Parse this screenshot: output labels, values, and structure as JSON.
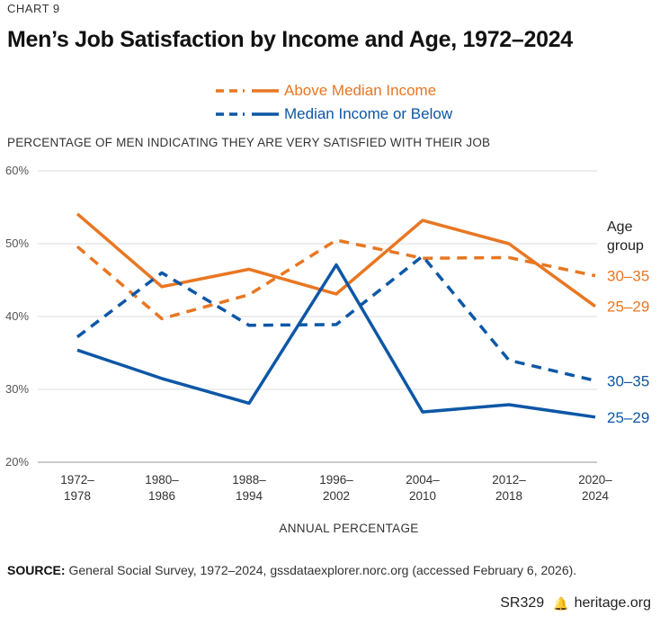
{
  "chart_label": "CHART 9",
  "title": "Men’s Job Satisfaction by Income and Age, 1972–2024",
  "subtitle": "PERCENTAGE OF MEN INDICATING THEY ARE VERY SATISFIED WITH THEIR JOB",
  "legend": [
    {
      "label": "Above Median Income",
      "color": "#e87722"
    },
    {
      "label": "Median Income or Below",
      "color": "#0d57a6"
    }
  ],
  "age_group_heading": [
    "Age",
    "group"
  ],
  "source": {
    "label": "SOURCE:",
    "text": " General Social Survey, 1972–2024, gssdataexplorer.norc.org (accessed February 6, 2026)."
  },
  "footer": {
    "report_id": "SR329",
    "site": "heritage.org"
  },
  "chart_data": {
    "type": "line",
    "categories": [
      [
        "1972–",
        "1978"
      ],
      [
        "1980–",
        "1986"
      ],
      [
        "1988–",
        "1994"
      ],
      [
        "1996–",
        "2002"
      ],
      [
        "2004–",
        "2010"
      ],
      [
        "2012–",
        "2018"
      ],
      [
        "2020–",
        "2024"
      ]
    ],
    "xlabel": "ANNUAL PERCENTAGE",
    "ylim": [
      20,
      60
    ],
    "yticks": [
      20,
      30,
      40,
      50,
      60
    ],
    "ytick_labels": [
      "20%",
      "30%",
      "40%",
      "50%",
      "60%"
    ],
    "grid": true,
    "series": [
      {
        "group": "Above Median Income",
        "age": "30–35",
        "style": "dashed",
        "color": "#e87722",
        "values": [
          49.6,
          39.7,
          43.0,
          50.5,
          48.0,
          48.1,
          45.6
        ]
      },
      {
        "group": "Above Median Income",
        "age": "25–29",
        "style": "solid",
        "color": "#e87722",
        "values": [
          54.1,
          44.1,
          46.5,
          43.1,
          53.2,
          50.0,
          41.4
        ]
      },
      {
        "group": "Median Income or Below",
        "age": "30–35",
        "style": "dashed",
        "color": "#0d57a6",
        "values": [
          37.2,
          46.0,
          38.8,
          38.9,
          48.3,
          34.0,
          31.2
        ]
      },
      {
        "group": "Median Income or Below",
        "age": "25–29",
        "style": "solid",
        "color": "#0d57a6",
        "values": [
          35.4,
          31.5,
          28.1,
          47.1,
          26.9,
          27.9,
          26.2
        ]
      }
    ]
  }
}
